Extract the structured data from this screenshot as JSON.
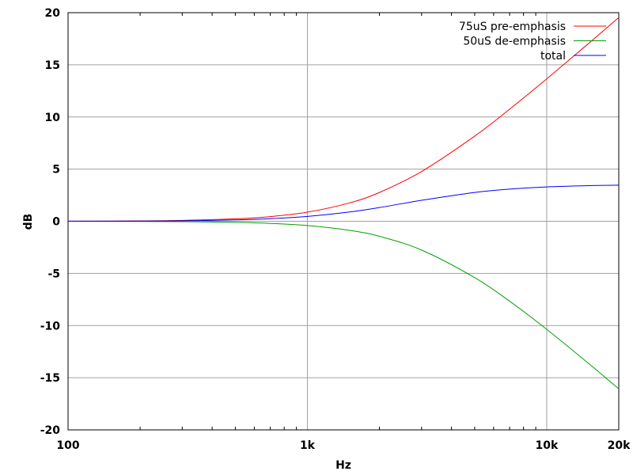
{
  "chart_data": {
    "type": "line",
    "title": "",
    "xlabel": "Hz",
    "ylabel": "dB",
    "xscale": "log",
    "xlim": [
      100,
      20000
    ],
    "ylim": [
      -20,
      20
    ],
    "grid": true,
    "legend_position": "top-right",
    "xticks": [
      {
        "value": 100,
        "label": "100"
      },
      {
        "value": 1000,
        "label": "1k"
      },
      {
        "value": 10000,
        "label": "10k"
      },
      {
        "value": 20000,
        "label": "20k"
      }
    ],
    "yticks": [
      {
        "value": 20,
        "label": "20"
      },
      {
        "value": 15,
        "label": "15"
      },
      {
        "value": 10,
        "label": "10"
      },
      {
        "value": 5,
        "label": "5"
      },
      {
        "value": 0,
        "label": "0"
      },
      {
        "value": -5,
        "label": "-5"
      },
      {
        "value": -10,
        "label": "-10"
      },
      {
        "value": -15,
        "label": "-15"
      },
      {
        "value": -20,
        "label": "-20"
      }
    ],
    "x": [
      100,
      200,
      300,
      500,
      700,
      1000,
      1500,
      2000,
      3000,
      5000,
      7000,
      10000,
      15000,
      20000
    ],
    "series": [
      {
        "name": "75uS pre-emphasis",
        "color": "#ff0000",
        "values": [
          0.01,
          0.038,
          0.086,
          0.235,
          0.449,
          0.871,
          1.76,
          2.761,
          4.769,
          8.164,
          10.748,
          13.656,
          17.073,
          19.534
        ]
      },
      {
        "name": "50uS de-emphasis",
        "color": "#00a000",
        "values": [
          -0.004,
          -0.017,
          -0.038,
          -0.106,
          -0.205,
          -0.41,
          -0.871,
          -1.445,
          -2.76,
          -5.4,
          -7.661,
          -10.362,
          -13.656,
          -16.072
        ]
      },
      {
        "name": "total",
        "color": "#0000ff",
        "values": [
          0.005,
          0.021,
          0.048,
          0.129,
          0.244,
          0.462,
          0.889,
          1.316,
          2.01,
          2.764,
          3.087,
          3.294,
          3.417,
          3.462
        ]
      }
    ]
  }
}
